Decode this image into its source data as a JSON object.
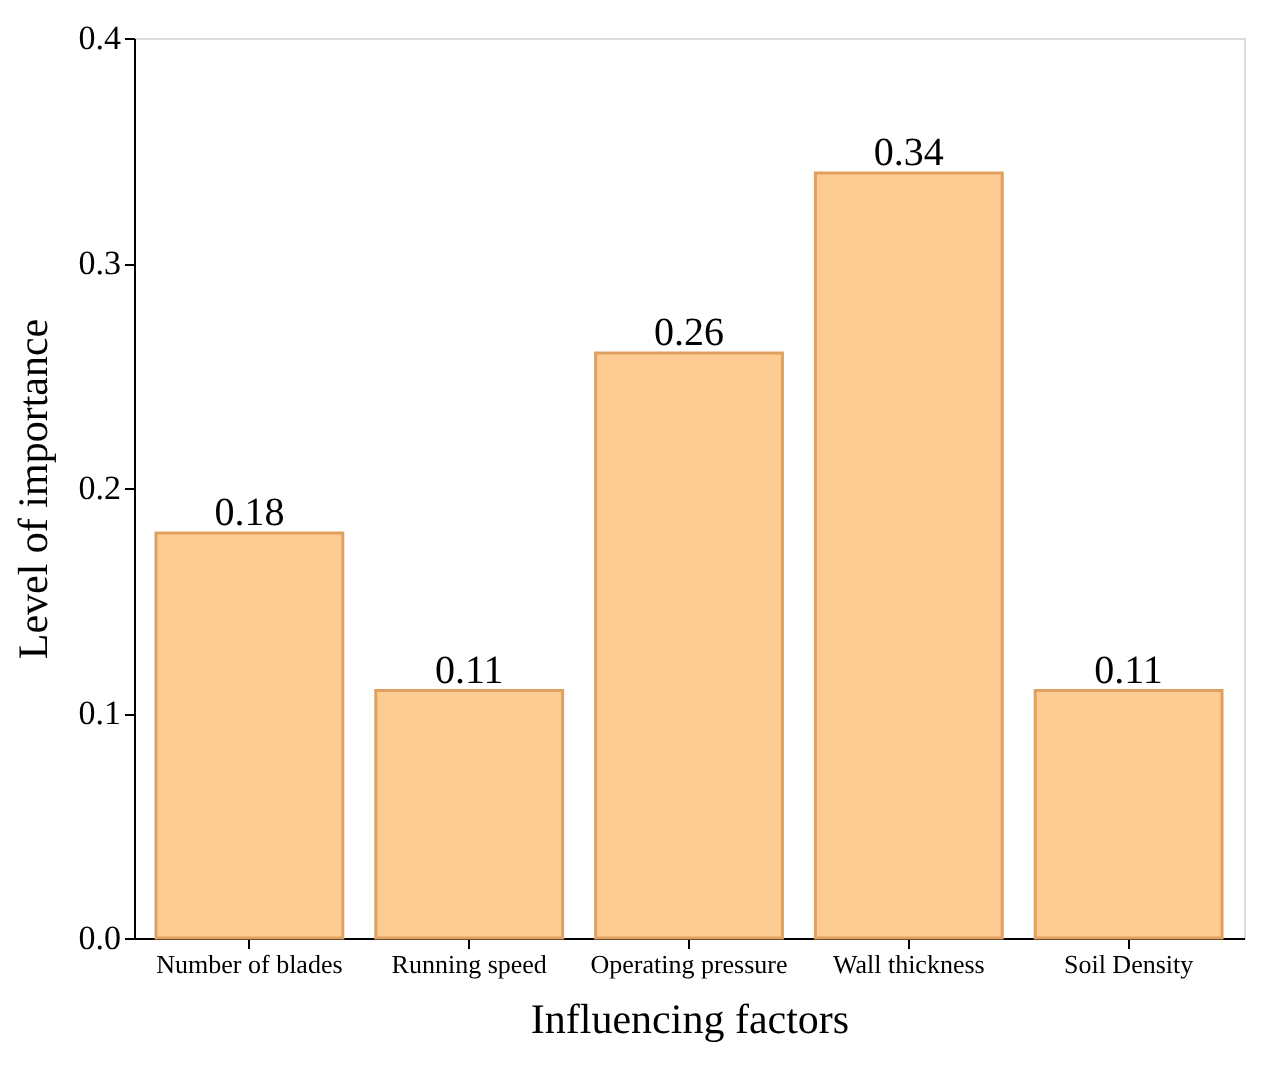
{
  "chart_data": {
    "type": "bar",
    "xlabel": "Influencing factors",
    "ylabel": "Level of importance",
    "categories": [
      "Number of blades",
      "Running speed",
      "Operating pressure",
      "Wall thickness",
      "Soil Density"
    ],
    "values": [
      0.18,
      0.11,
      0.26,
      0.34,
      0.11
    ],
    "color": "#fdcc93",
    "ylim": [
      0,
      0.4
    ],
    "yticks": [
      {
        "value": 0,
        "label": "0.0"
      },
      0.1,
      0.2,
      0.3,
      0.4
    ],
    "data_labels": true,
    "grid": false
  }
}
